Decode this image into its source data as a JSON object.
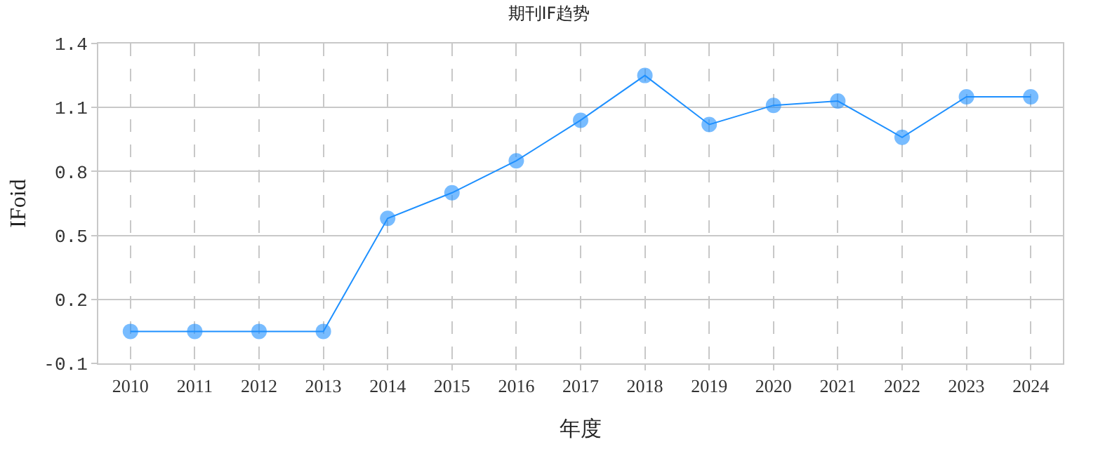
{
  "chart_data": {
    "type": "line",
    "title": "期刊IF趋势",
    "xlabel": "年度",
    "ylabel": "IFoid",
    "categories": [
      "2010",
      "2011",
      "2012",
      "2013",
      "2014",
      "2015",
      "2016",
      "2017",
      "2018",
      "2019",
      "2020",
      "2021",
      "2022",
      "2023",
      "2024"
    ],
    "series": [
      {
        "color": "#1e90ff",
        "values": [
          0.05,
          0.05,
          0.05,
          0.05,
          0.58,
          0.7,
          0.85,
          1.04,
          1.25,
          1.02,
          1.11,
          1.13,
          0.96,
          1.15,
          1.15
        ]
      }
    ],
    "ylim": [
      -0.1,
      1.4
    ],
    "yticks": [
      -0.1,
      0.2,
      0.5,
      0.8,
      1.1,
      1.4
    ],
    "grid": true,
    "marker": "circle",
    "line_style": "solid"
  }
}
